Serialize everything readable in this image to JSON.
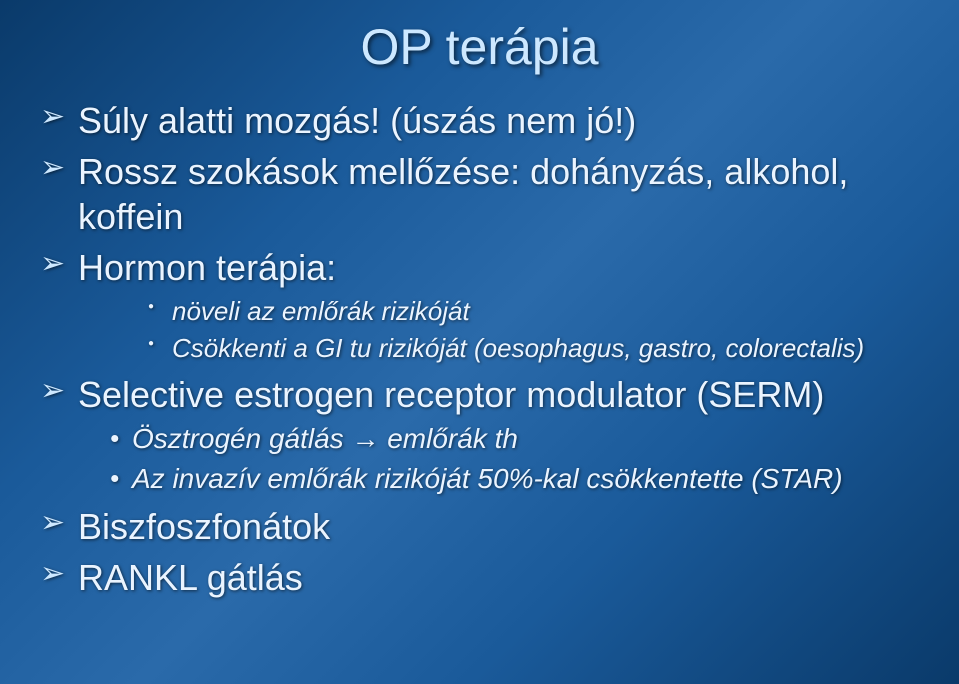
{
  "colors": {
    "text": "#eaf4ff",
    "title": "#cde8ff",
    "bg_gradient_start": "#0a3a6a",
    "bg_gradient_mid": "#2a6aaa",
    "bg_gradient_end": "#0a3a6a"
  },
  "typography": {
    "title_fontsize": 50,
    "level1_fontsize": 36,
    "level2_fontsize": 26,
    "level3_fontsize": 28,
    "font_family": "Arial"
  },
  "title": "OP terápia",
  "bullets": {
    "b1": "Súly alatti mozgás! (úszás nem jó!)",
    "b2": "Rossz szokások mellőzése: dohányzás, alkohol, koffein",
    "b3": "Hormon terápia:",
    "b3a": "növeli az emlőrák rizikóját",
    "b3b": "Csökkenti a GI tu rizikóját (oesophagus, gastro, colorectalis)",
    "b4": "Selective estrogen receptor modulator (SERM)",
    "b4a": "Ösztrogén gátlás → emlőrák th",
    "b4b": "Az invazív emlőrák rizikóját 50%-kal csökkentette (STAR)",
    "b5": "Biszfoszfonátok",
    "b6": "RANKL gátlás"
  }
}
